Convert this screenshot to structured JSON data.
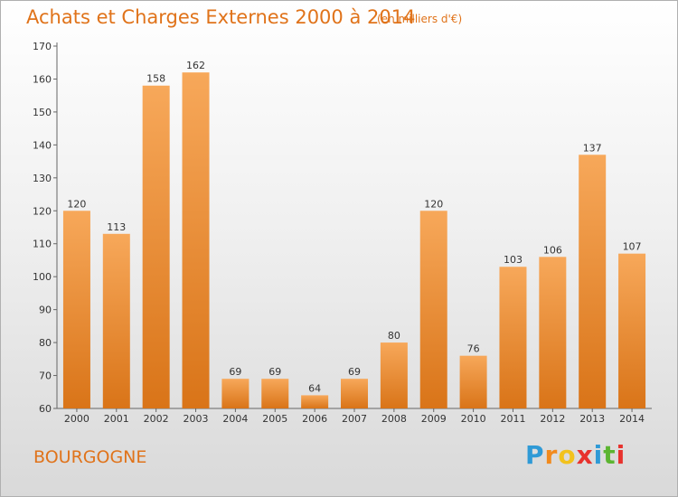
{
  "chart_data": {
    "type": "bar",
    "title": "Achats et Charges Externes 2000 à 2014",
    "subtitle": "(en milliers d'€)",
    "categories": [
      "2000",
      "2001",
      "2002",
      "2003",
      "2004",
      "2005",
      "2006",
      "2007",
      "2008",
      "2009",
      "2010",
      "2011",
      "2012",
      "2013",
      "2014"
    ],
    "values": [
      120,
      113,
      158,
      162,
      69,
      69,
      64,
      69,
      80,
      120,
      76,
      103,
      106,
      137,
      107
    ],
    "ylim": [
      60,
      170
    ],
    "yticks": [
      60,
      70,
      80,
      90,
      100,
      110,
      120,
      130,
      140,
      150,
      160,
      170
    ],
    "grid": false,
    "colors": {
      "bar_light": "#f7a85a",
      "bar_dark": "#d97418"
    }
  },
  "footer": {
    "region": "BOURGOGNE",
    "logo_letters": [
      "P",
      "r",
      "o",
      "x",
      "i",
      "t",
      "i"
    ],
    "logo_colors": [
      "#2f9ad6",
      "#f28a1d",
      "#f2c21d",
      "#e8322d",
      "#2f9ad6",
      "#5cb531",
      "#e8322d"
    ]
  }
}
